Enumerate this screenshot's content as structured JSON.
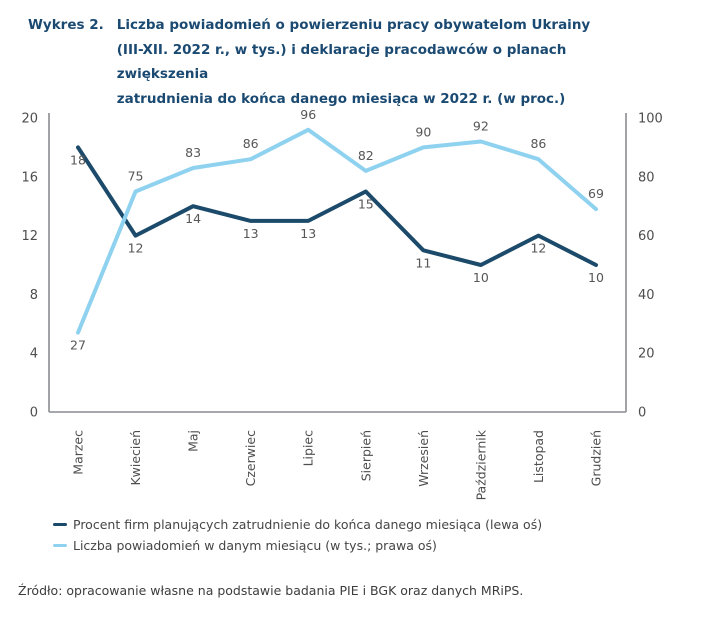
{
  "header": {
    "label": "Wykres 2.",
    "title_lines": [
      "Liczba powiadomień o powierzeniu pracy obywatelom Ukrainy",
      "(III-XII. 2022 r., w tys.) i deklaracje pracodawców o planach zwiększenia",
      "zatrudnienia do końca danego miesiąca w 2022 r. (w proc.)"
    ]
  },
  "chart_data": {
    "type": "line",
    "categories": [
      "Marzec",
      "Kwiecień",
      "Maj",
      "Czerwiec",
      "Lipiec",
      "Sierpień",
      "Wrzesień",
      "Październik",
      "Listopad",
      "Grudzień"
    ],
    "series": [
      {
        "name": "Procent firm planujących zatrudnienie do końca danego miesiąca (lewa oś)",
        "axis": "left",
        "color": "#1c4a6a",
        "values": [
          18,
          12,
          14,
          13,
          13,
          15,
          11,
          10,
          12,
          10
        ],
        "label_placement": "below"
      },
      {
        "name": "Liczba powiadomień w danym miesiącu (w tys.; prawa oś)",
        "axis": "right",
        "color": "#8ed2f0",
        "values": [
          27,
          75,
          83,
          86,
          96,
          82,
          90,
          92,
          86,
          69
        ],
        "label_placement": "above",
        "label_placement_overrides": {
          "0": "below"
        }
      }
    ],
    "left_axis": {
      "range": [
        0,
        20
      ],
      "ticks": [
        0,
        4,
        8,
        12,
        16,
        20
      ]
    },
    "right_axis": {
      "range": [
        0,
        100
      ],
      "ticks": [
        0,
        20,
        40,
        60,
        80,
        100
      ]
    },
    "grid": false,
    "legend_position": "bottom-left",
    "point_labels_visible": true
  },
  "source": "Źródło: opracowanie własne na podstawie badania PIE i BGK oraz danych MRiPS.",
  "colors": {
    "title": "#1a4971",
    "axis_line": "#8a8c8f",
    "tick_text": "#4e4e4e",
    "point_label_text": "#565656",
    "legend_text": "#454545",
    "source_text": "#3d3d3d"
  }
}
